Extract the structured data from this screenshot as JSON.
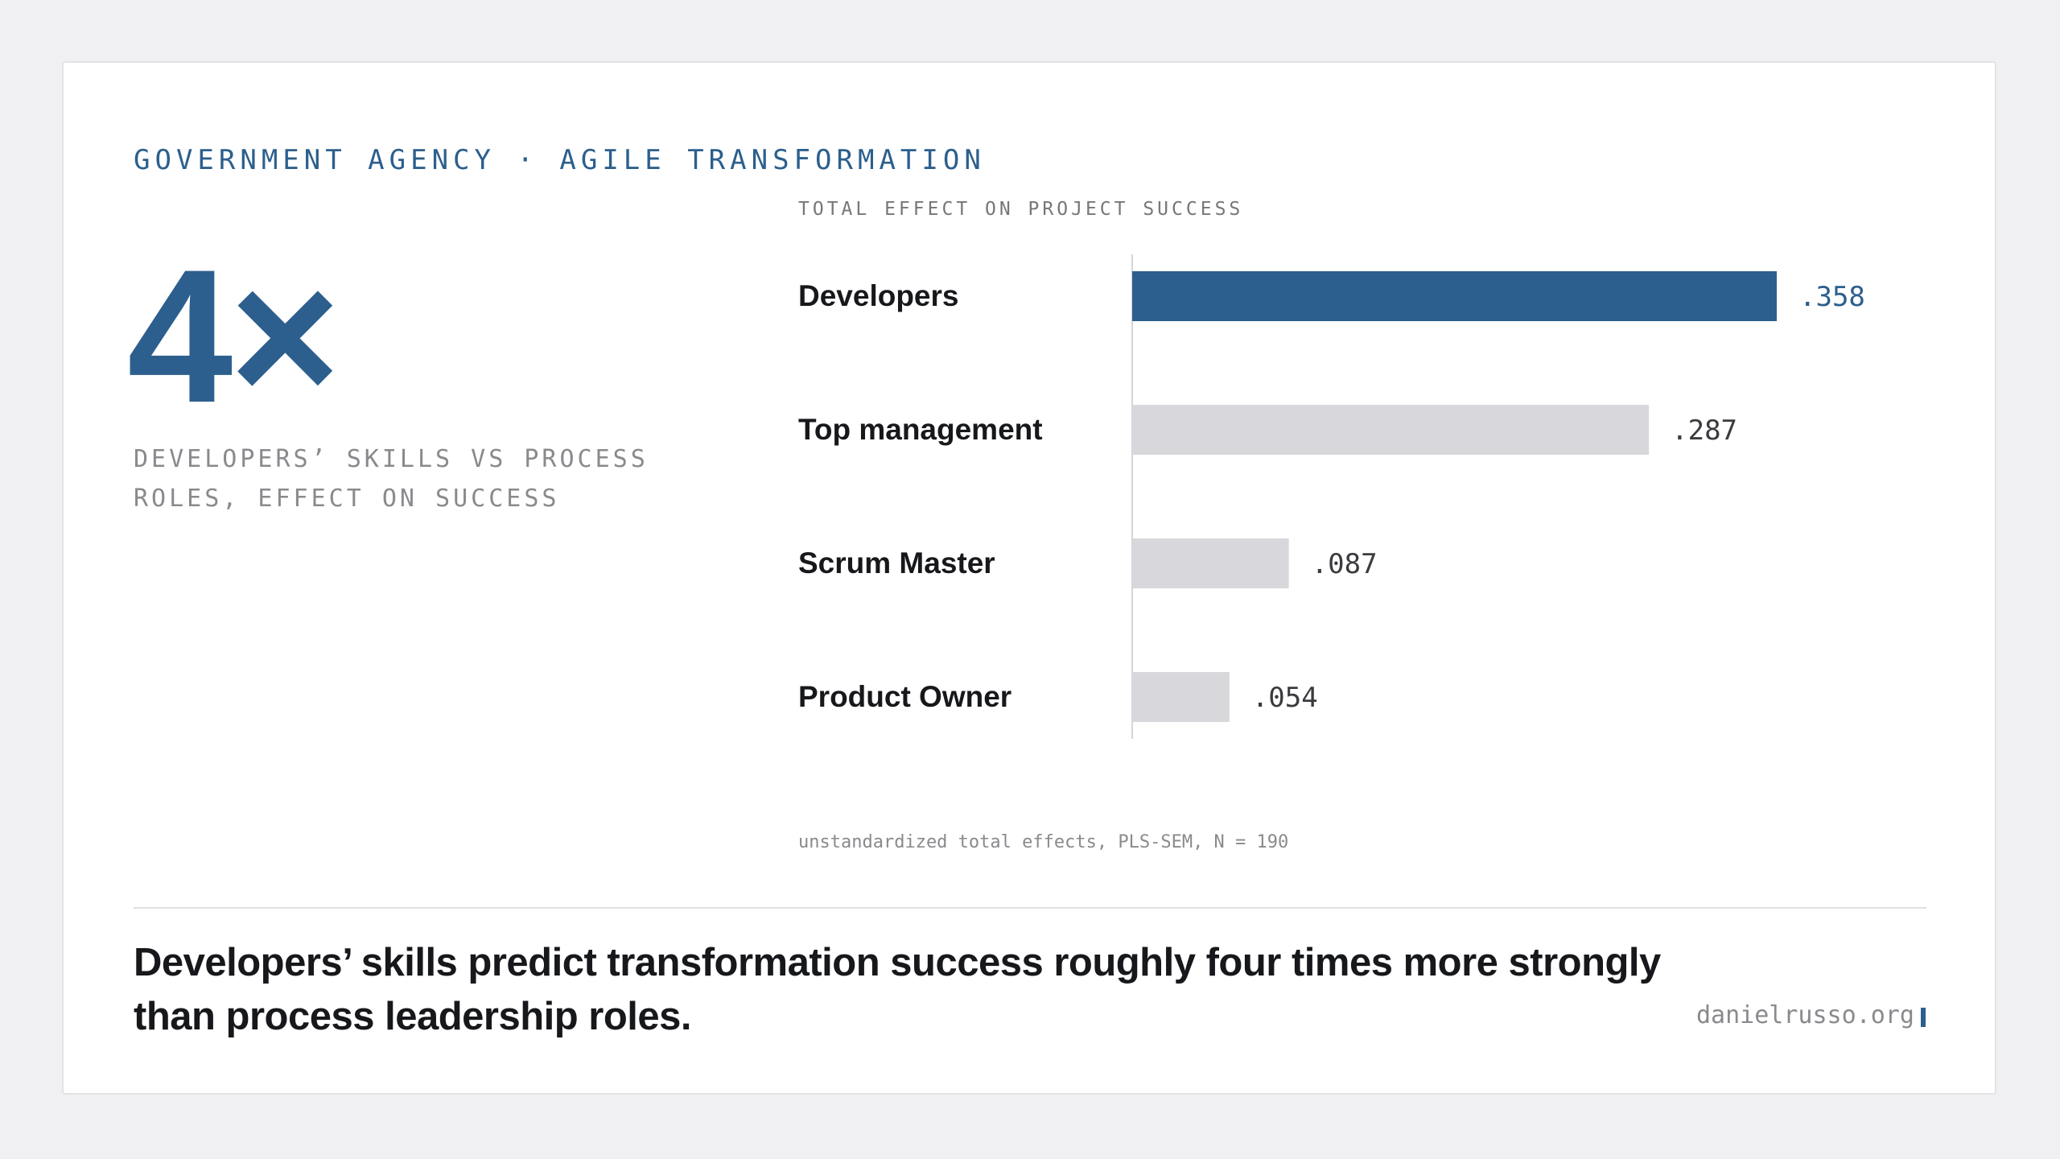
{
  "header": {
    "kicker": "GOVERNMENT AGENCY · AGILE TRANSFORMATION"
  },
  "stat": {
    "value": "4×",
    "caption": "DEVELOPERS’ SKILLS VS PROCESS ROLES, EFFECT ON SUCCESS"
  },
  "chart_data": {
    "type": "bar",
    "orientation": "horizontal",
    "title": "TOTAL EFFECT ON PROJECT SUCCESS",
    "categories": [
      "Developers",
      "Top management",
      "Scrum Master",
      "Product Owner"
    ],
    "values": [
      0.358,
      0.287,
      0.087,
      0.054
    ],
    "value_labels": [
      ".358",
      ".287",
      ".087",
      ".054"
    ],
    "highlight_index": 0,
    "xlim": [
      0,
      0.4
    ],
    "grid": false,
    "legend": "none",
    "colors": {
      "highlight": "#2c5f8d",
      "default": "#d8d8dc",
      "highlight_label": "#2c5f8d",
      "default_label": "#3b3b3f"
    },
    "note": "unstandardized total effects, PLS-SEM, N = 190"
  },
  "footer": {
    "headline": "Developers’ skills predict transformation success roughly four times more strongly than process leadership roles.",
    "site": "danielrusso.org"
  }
}
